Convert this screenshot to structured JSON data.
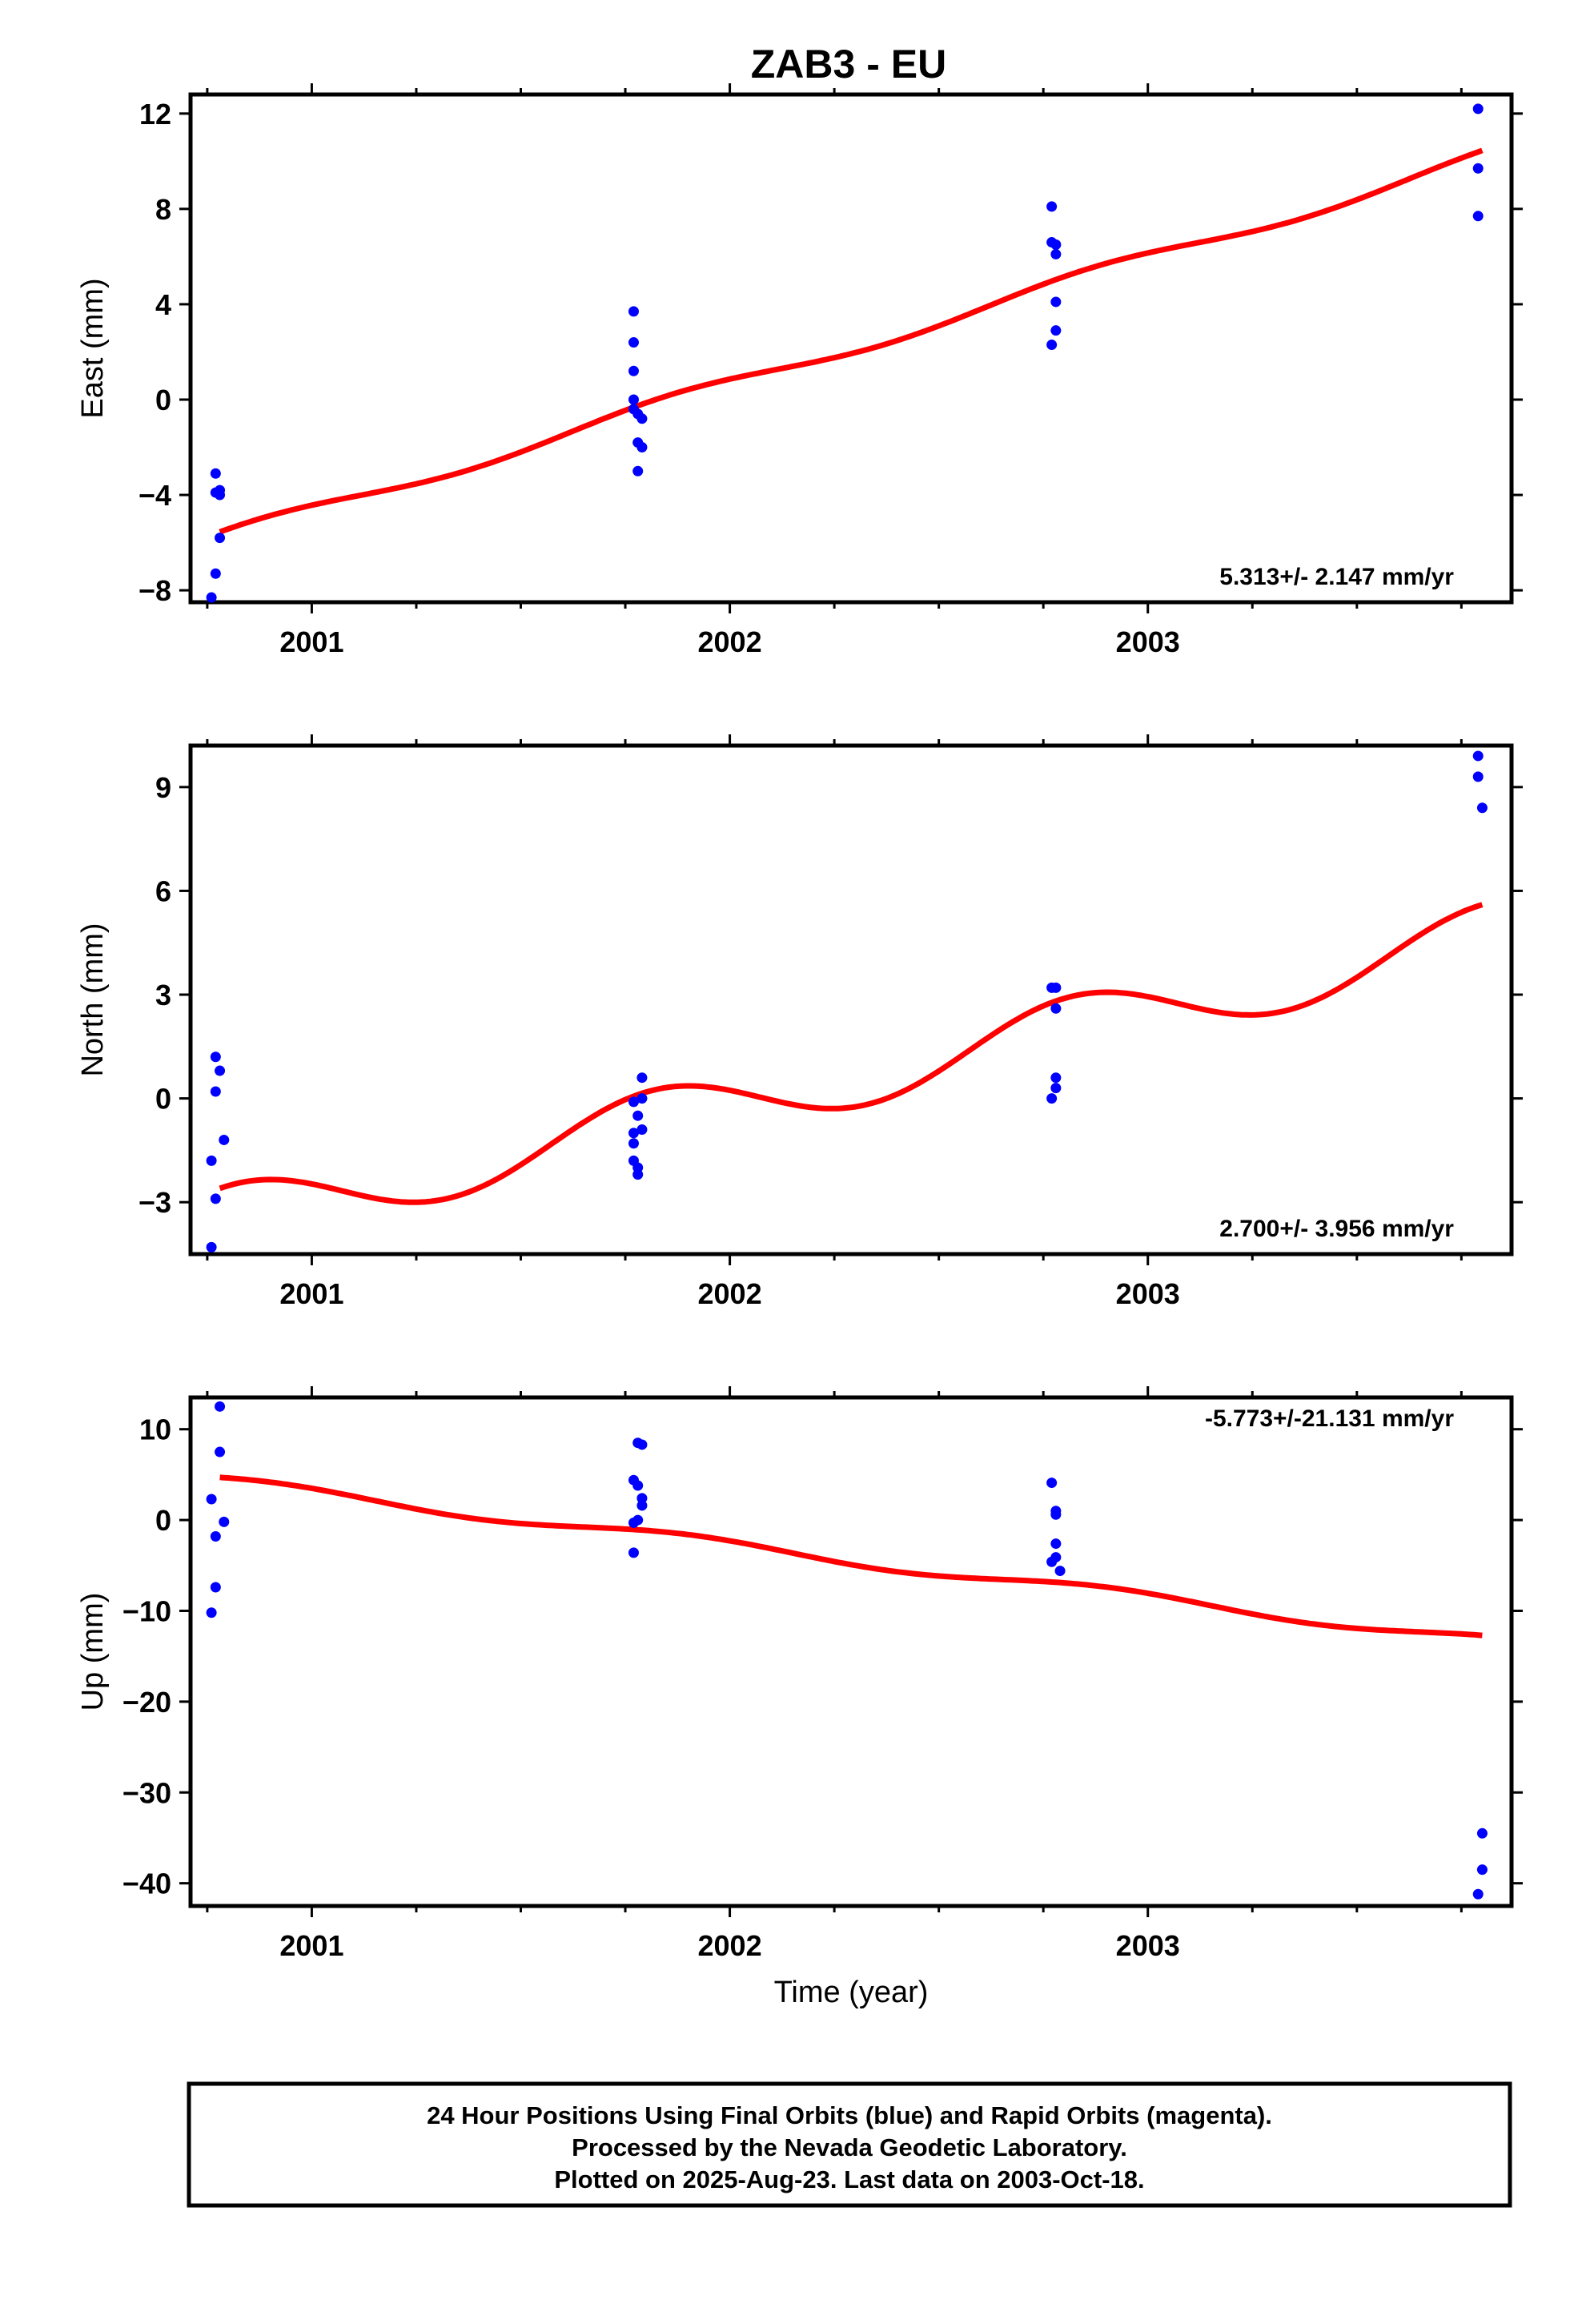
{
  "title": "ZAB3 - EU",
  "footer": {
    "lines": [
      "24 Hour Positions Using Final Orbits (blue) and Rapid Orbits (magenta).",
      "Processed by the Nevada Geodetic Laboratory.",
      "Plotted on 2025-Aug-23. Last data on 2003-Oct-18."
    ]
  },
  "colors": {
    "points": "#0000ff",
    "fit": "#ff0000",
    "frame": "#000000"
  },
  "chart_data": [
    {
      "type": "scatter",
      "ylabel": "East (mm)",
      "xlabel": "",
      "xlim": [
        2000.71,
        2003.87
      ],
      "ylim": [
        -8.5,
        12.8
      ],
      "yticks": [
        -8,
        -4,
        0,
        4,
        8,
        12
      ],
      "xticks": [
        2001,
        2002,
        2003
      ],
      "rate_label": "5.313+/- 2.147 mm/yr",
      "points": [
        [
          2000.77,
          -3.1
        ],
        [
          2000.77,
          -3.9
        ],
        [
          2000.78,
          -3.8
        ],
        [
          2000.78,
          -4.0
        ],
        [
          2000.78,
          -5.8
        ],
        [
          2000.77,
          -7.3
        ],
        [
          2000.76,
          -8.3
        ],
        [
          2001.77,
          3.7
        ],
        [
          2001.77,
          2.4
        ],
        [
          2001.77,
          1.2
        ],
        [
          2001.77,
          0.0
        ],
        [
          2001.77,
          -0.4
        ],
        [
          2001.78,
          -0.6
        ],
        [
          2001.79,
          -0.8
        ],
        [
          2001.78,
          -1.8
        ],
        [
          2001.79,
          -2.0
        ],
        [
          2001.78,
          -3.0
        ],
        [
          2002.77,
          8.1
        ],
        [
          2002.77,
          6.6
        ],
        [
          2002.78,
          6.5
        ],
        [
          2002.78,
          6.1
        ],
        [
          2002.78,
          4.1
        ],
        [
          2002.78,
          2.9
        ],
        [
          2002.77,
          2.3
        ],
        [
          2003.79,
          12.2
        ],
        [
          2003.79,
          9.7
        ],
        [
          2003.79,
          7.7
        ]
      ],
      "fit": {
        "x0": 2000.78,
        "y0": -5.55,
        "x1": 2003.8,
        "y1": 10.45,
        "amp": 0.3,
        "phase": 1.0
      }
    },
    {
      "type": "scatter",
      "ylabel": "North (mm)",
      "xlabel": "",
      "xlim": [
        2000.71,
        2003.87
      ],
      "ylim": [
        -4.5,
        10.2
      ],
      "yticks": [
        -3,
        0,
        3,
        6,
        9
      ],
      "xticks": [
        2001,
        2002,
        2003
      ],
      "rate_label": "2.700+/- 3.956 mm/yr",
      "points": [
        [
          2000.77,
          1.2
        ],
        [
          2000.78,
          0.8
        ],
        [
          2000.77,
          0.2
        ],
        [
          2000.79,
          -1.2
        ],
        [
          2000.76,
          -1.8
        ],
        [
          2000.77,
          -2.9
        ],
        [
          2000.76,
          -4.3
        ],
        [
          2001.79,
          0.6
        ],
        [
          2001.79,
          0.0
        ],
        [
          2001.77,
          -0.1
        ],
        [
          2001.78,
          -0.5
        ],
        [
          2001.79,
          -0.9
        ],
        [
          2001.77,
          -1.0
        ],
        [
          2001.77,
          -1.3
        ],
        [
          2001.77,
          -1.8
        ],
        [
          2001.78,
          -2.0
        ],
        [
          2001.78,
          -2.2
        ],
        [
          2002.77,
          3.2
        ],
        [
          2002.78,
          3.2
        ],
        [
          2002.78,
          2.6
        ],
        [
          2002.78,
          0.6
        ],
        [
          2002.78,
          0.3
        ],
        [
          2002.77,
          0.0
        ],
        [
          2003.79,
          9.9
        ],
        [
          2003.79,
          9.3
        ],
        [
          2003.8,
          8.4
        ]
      ],
      "fit": {
        "x0": 2000.78,
        "y0": -2.6,
        "x1": 2003.8,
        "y1": 5.6,
        "amp": 0.9,
        "phase": 1.3
      }
    },
    {
      "type": "scatter",
      "ylabel": "Up (mm)",
      "xlabel": "Time (year)",
      "xlim": [
        2000.71,
        2003.87
      ],
      "ylim": [
        -42.5,
        13.5
      ],
      "yticks": [
        -40,
        -30,
        -20,
        -10,
        0,
        10
      ],
      "xticks": [
        2001,
        2002,
        2003
      ],
      "rate_label": "-5.773+/-21.131 mm/yr",
      "points": [
        [
          2000.78,
          12.5
        ],
        [
          2000.78,
          7.5
        ],
        [
          2000.76,
          2.3
        ],
        [
          2000.79,
          -0.2
        ],
        [
          2000.77,
          -1.8
        ],
        [
          2000.77,
          -7.4
        ],
        [
          2000.76,
          -10.2
        ],
        [
          2001.78,
          8.5
        ],
        [
          2001.79,
          8.3
        ],
        [
          2001.77,
          4.4
        ],
        [
          2001.78,
          3.8
        ],
        [
          2001.79,
          2.4
        ],
        [
          2001.79,
          1.6
        ],
        [
          2001.78,
          0.0
        ],
        [
          2001.77,
          -0.3
        ],
        [
          2001.77,
          -3.6
        ],
        [
          2002.77,
          4.1
        ],
        [
          2002.78,
          1.0
        ],
        [
          2002.78,
          0.6
        ],
        [
          2002.78,
          -2.6
        ],
        [
          2002.78,
          -4.1
        ],
        [
          2002.77,
          -4.6
        ],
        [
          2002.79,
          -5.6
        ],
        [
          2003.8,
          -34.5
        ],
        [
          2003.8,
          -38.5
        ],
        [
          2003.79,
          -41.2
        ]
      ],
      "fit": {
        "x0": 2000.78,
        "y0": 4.7,
        "x1": 2003.8,
        "y1": -12.7,
        "amp": 0.6,
        "phase": 0.8
      }
    }
  ]
}
